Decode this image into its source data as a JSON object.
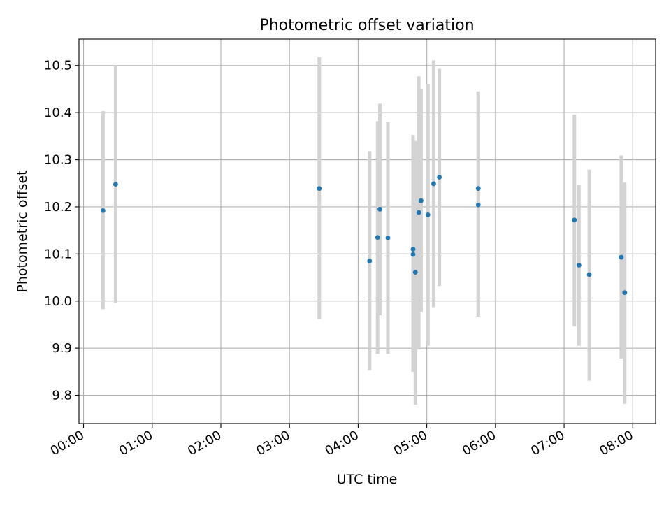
{
  "chart_data": {
    "type": "scatter",
    "title": "Photometric offset variation",
    "xlabel": "UTC time",
    "ylabel": "Photometric offset",
    "xlim": [
      "-00:04",
      "08:20"
    ],
    "ylim": [
      9.74,
      10.556
    ],
    "grid": true,
    "x_ticks": [
      "00:00",
      "01:00",
      "02:00",
      "03:00",
      "04:00",
      "05:00",
      "06:00",
      "07:00",
      "08:00"
    ],
    "y_ticks": [
      "9.8",
      "9.9",
      "10.0",
      "10.1",
      "10.2",
      "10.3",
      "10.4",
      "10.5"
    ],
    "point_color": "#1f77b4",
    "errorbar_color": "#d3d3d3",
    "points": [
      {
        "x": "00:17",
        "y": 10.192,
        "err_low": 9.983,
        "err_high": 10.403
      },
      {
        "x": "00:28",
        "y": 10.248,
        "err_low": 9.996,
        "err_high": 10.5
      },
      {
        "x": "03:26",
        "y": 10.239,
        "err_low": 9.962,
        "err_high": 10.518
      },
      {
        "x": "04:10",
        "y": 10.085,
        "err_low": 9.853,
        "err_high": 10.318
      },
      {
        "x": "04:17",
        "y": 10.135,
        "err_low": 9.888,
        "err_high": 10.382
      },
      {
        "x": "04:19",
        "y": 10.195,
        "err_low": 9.97,
        "err_high": 10.419
      },
      {
        "x": "04:26",
        "y": 10.134,
        "err_low": 9.888,
        "err_high": 10.38
      },
      {
        "x": "04:48",
        "y": 10.11,
        "err_low": 9.85,
        "err_high": 10.353
      },
      {
        "x": "04:48",
        "y": 10.099,
        "err_low": 9.855,
        "err_high": 10.343
      },
      {
        "x": "04:50",
        "y": 10.061,
        "err_low": 9.78,
        "err_high": 10.34
      },
      {
        "x": "04:53",
        "y": 10.188,
        "err_low": 9.897,
        "err_high": 10.477
      },
      {
        "x": "04:55",
        "y": 10.213,
        "err_low": 9.977,
        "err_high": 10.45
      },
      {
        "x": "05:01",
        "y": 10.183,
        "err_low": 9.905,
        "err_high": 10.461
      },
      {
        "x": "05:06",
        "y": 10.249,
        "err_low": 9.987,
        "err_high": 10.511
      },
      {
        "x": "05:11",
        "y": 10.263,
        "err_low": 10.032,
        "err_high": 10.493
      },
      {
        "x": "05:45",
        "y": 10.239,
        "err_low": 9.967,
        "err_high": 10.445
      },
      {
        "x": "05:45",
        "y": 10.204,
        "err_low": 9.967,
        "err_high": 10.445
      },
      {
        "x": "07:09",
        "y": 10.172,
        "err_low": 9.946,
        "err_high": 10.396
      },
      {
        "x": "07:13",
        "y": 10.076,
        "err_low": 9.905,
        "err_high": 10.247
      },
      {
        "x": "07:22",
        "y": 10.056,
        "err_low": 9.831,
        "err_high": 10.279
      },
      {
        "x": "07:50",
        "y": 10.093,
        "err_low": 9.878,
        "err_high": 10.309
      },
      {
        "x": "07:53",
        "y": 10.018,
        "err_low": 9.782,
        "err_high": 10.252
      }
    ]
  }
}
